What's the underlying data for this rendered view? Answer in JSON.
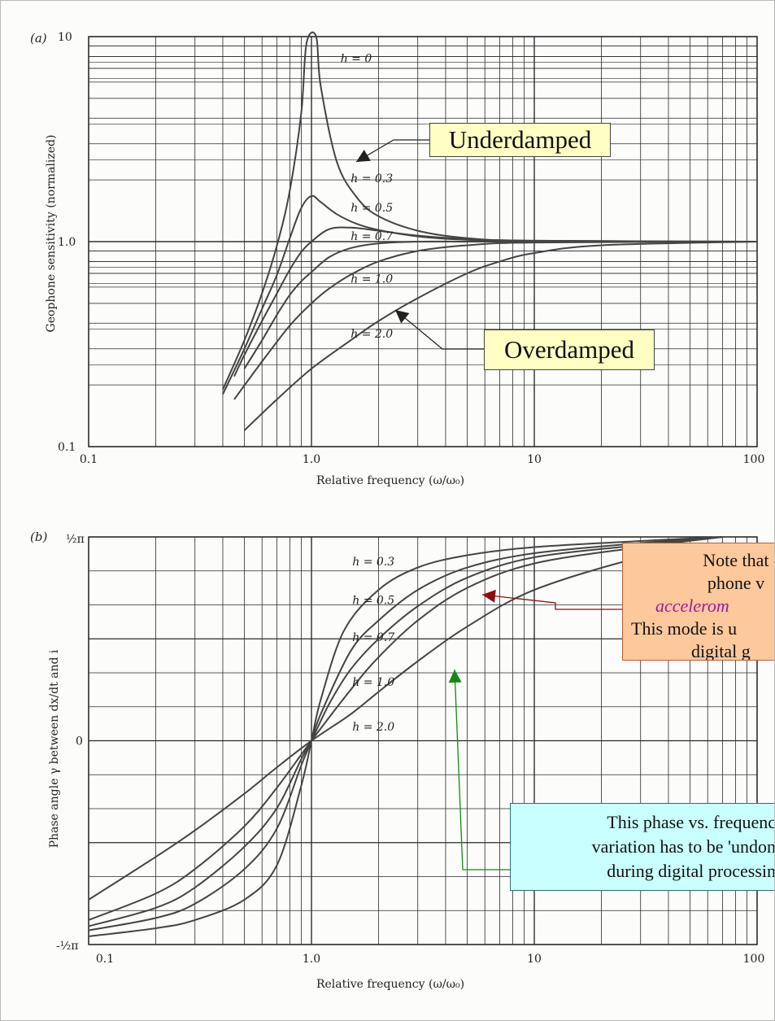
{
  "chart_data": [
    {
      "panel_label": "(a)",
      "type": "line",
      "xscale": "log",
      "yscale": "log",
      "xlim": [
        0.1,
        100
      ],
      "ylim": [
        0.1,
        10
      ],
      "xlabel": "Relative frequency (ω/ω₀)",
      "ylabel": "Geophone sensitivity (normalized)",
      "x_tick_labels": [
        "0.1",
        "1.0",
        "10",
        "100"
      ],
      "y_tick_labels": [
        "0.1",
        "1.0",
        "10"
      ],
      "grid": true,
      "series": [
        {
          "name": "h = 0",
          "h": 0,
          "x": [
            0.4,
            0.5,
            0.6,
            0.7,
            0.8,
            0.9,
            0.95,
            1.05,
            1.1,
            1.3,
            1.6,
            2,
            3,
            5,
            10,
            100
          ],
          "y": [
            0.19,
            0.33,
            0.56,
            0.96,
            1.78,
            4.26,
            9.26,
            10.75,
            5.76,
            2.45,
            1.64,
            1.33,
            1.13,
            1.04,
            1.01,
            1.0
          ]
        },
        {
          "name": "h = 0.3",
          "h": 0.3,
          "x": [
            0.4,
            0.5,
            0.6,
            0.7,
            0.8,
            0.9,
            1.0,
            1.1,
            1.3,
            1.6,
            2,
            3,
            5,
            10,
            100
          ],
          "y": [
            0.18,
            0.3,
            0.47,
            0.69,
            1.04,
            1.46,
            1.67,
            1.56,
            1.36,
            1.22,
            1.14,
            1.06,
            1.02,
            1.0,
            1.0
          ]
        },
        {
          "name": "h = 0.5",
          "h": 0.5,
          "x": [
            0.45,
            0.5,
            0.6,
            0.7,
            0.8,
            0.9,
            1.0,
            1.2,
            1.5,
            2,
            3,
            5,
            10,
            100
          ],
          "y": [
            0.22,
            0.28,
            0.41,
            0.56,
            0.73,
            0.89,
            1.0,
            1.15,
            1.17,
            1.13,
            1.07,
            1.03,
            1.01,
            1.0
          ]
        },
        {
          "name": "h = 0.7",
          "h": 0.7,
          "x": [
            0.5,
            0.6,
            0.7,
            0.8,
            0.9,
            1.0,
            1.2,
            1.5,
            2,
            3,
            5,
            10,
            100
          ],
          "y": [
            0.24,
            0.33,
            0.44,
            0.55,
            0.64,
            0.71,
            0.84,
            0.93,
            0.98,
            1.0,
            1.0,
            1.0,
            1.0
          ]
        },
        {
          "name": "h = 1.0",
          "h": 1.0,
          "x": [
            0.45,
            0.6,
            0.8,
            1.0,
            1.2,
            1.5,
            2,
            3,
            5,
            10,
            100
          ],
          "y": [
            0.17,
            0.26,
            0.39,
            0.5,
            0.59,
            0.69,
            0.8,
            0.9,
            0.96,
            0.99,
            1.0
          ]
        },
        {
          "name": "h = 2.0",
          "h": 2.0,
          "x": [
            0.5,
            0.7,
            1.0,
            1.5,
            2,
            3,
            5,
            7,
            10,
            20,
            100
          ],
          "y": [
            0.12,
            0.17,
            0.24,
            0.33,
            0.41,
            0.53,
            0.7,
            0.8,
            0.88,
            0.96,
            1.0
          ]
        }
      ],
      "curve_labels": [
        {
          "text": "h = 0",
          "x": 1.35,
          "y": 7.5
        },
        {
          "text": "h = 0.3",
          "x": 1.5,
          "y": 1.95
        },
        {
          "text": "h = 0.5",
          "x": 1.5,
          "y": 1.4
        },
        {
          "text": "h = 0.7",
          "x": 1.5,
          "y": 1.02
        },
        {
          "text": "h = 1.0",
          "x": 1.5,
          "y": 0.63
        },
        {
          "text": "h = 2.0",
          "x": 1.5,
          "y": 0.34
        }
      ]
    },
    {
      "panel_label": "(b)",
      "type": "line",
      "xscale": "log",
      "xlim": [
        0.1,
        100
      ],
      "ylim": [
        "-½π",
        "½π"
      ],
      "xlabel": "Relative frequency (ω/ω₀)",
      "ylabel": "Phase angle γ between dx/dt and i",
      "x_tick_labels": [
        "0.1",
        "1.0",
        "10",
        "100"
      ],
      "y_tick_labels": [
        "½π",
        "0",
        "-½π"
      ],
      "grid": true,
      "y_units": "fraction of ½π",
      "series": [
        {
          "name": "h = 0.3",
          "h": 0.3,
          "x": [
            0.1,
            0.2,
            0.3,
            0.5,
            0.7,
            0.9,
            1.0,
            1.1,
            1.4,
            2,
            3,
            5,
            10,
            30,
            70
          ],
          "y": [
            -0.96,
            -0.92,
            -0.88,
            -0.78,
            -0.61,
            -0.22,
            0.0,
            0.2,
            0.54,
            0.74,
            0.85,
            0.91,
            0.95,
            0.98,
            1.0
          ]
        },
        {
          "name": "h = 0.5",
          "h": 0.5,
          "x": [
            0.1,
            0.2,
            0.3,
            0.5,
            0.7,
            0.9,
            1.0,
            1.1,
            1.5,
            2,
            3,
            5,
            10,
            30,
            70
          ],
          "y": [
            -0.93,
            -0.87,
            -0.8,
            -0.63,
            -0.43,
            -0.12,
            0.0,
            0.13,
            0.44,
            0.59,
            0.74,
            0.85,
            0.92,
            0.97,
            1.0
          ]
        },
        {
          "name": "h = 0.7",
          "h": 0.7,
          "x": [
            0.1,
            0.2,
            0.3,
            0.5,
            0.7,
            0.9,
            1.0,
            1.2,
            1.5,
            2,
            3,
            5,
            10,
            30,
            70
          ],
          "y": [
            -0.91,
            -0.82,
            -0.72,
            -0.52,
            -0.33,
            -0.09,
            0.0,
            0.18,
            0.35,
            0.5,
            0.66,
            0.8,
            0.9,
            0.96,
            1.0
          ]
        },
        {
          "name": "h = 1.0",
          "h": 1.0,
          "x": [
            0.1,
            0.2,
            0.3,
            0.5,
            0.7,
            1.0,
            1.5,
            2,
            3,
            5,
            10,
            30,
            70
          ],
          "y": [
            -0.88,
            -0.75,
            -0.63,
            -0.42,
            -0.23,
            0.0,
            0.25,
            0.41,
            0.59,
            0.75,
            0.87,
            0.95,
            1.0
          ]
        },
        {
          "name": "h = 2.0",
          "h": 2.0,
          "x": [
            0.1,
            0.2,
            0.3,
            0.5,
            0.7,
            1.0,
            1.5,
            2,
            3,
            5,
            10,
            30,
            70
          ],
          "y": [
            -0.78,
            -0.57,
            -0.44,
            -0.26,
            -0.13,
            0.0,
            0.13,
            0.24,
            0.39,
            0.56,
            0.74,
            0.9,
            0.97
          ]
        }
      ],
      "curve_labels": [
        {
          "text": "h = 0.3",
          "x": 1.5,
          "y": 0.86
        },
        {
          "text": "h = 0.5",
          "x": 1.5,
          "y": 0.67
        },
        {
          "text": "h = 0.7",
          "x": 1.5,
          "y": 0.49
        },
        {
          "text": "h = 1.0",
          "x": 1.5,
          "y": 0.27
        },
        {
          "text": "h = 2.0",
          "x": 1.5,
          "y": 0.05
        }
      ]
    }
  ],
  "annotations": {
    "underdamped": "Underdamped",
    "overdamped": "Overdamped",
    "note_lines": [
      "Note that o",
      "phone v",
      "accelerom",
      "This mode is u",
      "digital g"
    ],
    "phase_lines": [
      "This phase vs. frequenc",
      "variation has to be 'undon",
      "during digital processin"
    ],
    "colors": {
      "curve": "#444444",
      "grid": "#2a2a2a",
      "underdamped_arrow": "#222222",
      "note_arrow": "#8b1010",
      "phase_arrow": "#138a13",
      "accelerometer_text": "#a01aa0"
    }
  }
}
